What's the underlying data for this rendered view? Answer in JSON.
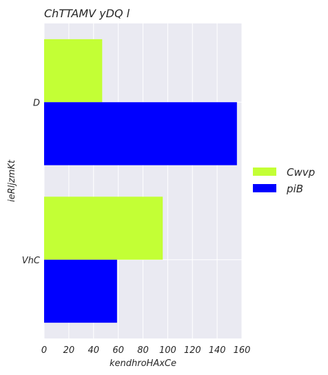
{
  "chart_data": {
    "type": "bar",
    "orientation": "horizontal",
    "title": "ChTTAMV yDQ l",
    "xlabel": "kendhroHAxCe",
    "ylabel": "ieRljzmKt",
    "categories": [
      "D",
      "VhC"
    ],
    "series": [
      {
        "name": "Cwvp",
        "values": [
          47,
          96
        ],
        "color": "#c3ff35"
      },
      {
        "name": "piB",
        "values": [
          156,
          59
        ],
        "color": "#0000ff"
      }
    ],
    "xlim": [
      0,
      160
    ],
    "xticks": [
      "0",
      "20",
      "40",
      "60",
      "80",
      "100",
      "120",
      "140",
      "160"
    ],
    "grid": true,
    "legend_position": "right",
    "background_color": "#eaeaf2"
  }
}
